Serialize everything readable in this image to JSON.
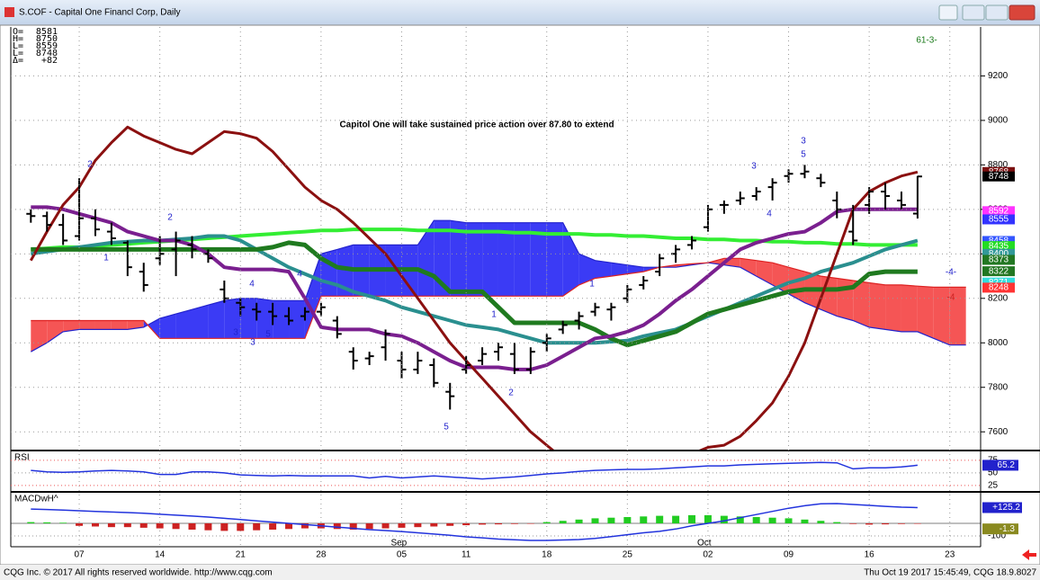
{
  "window": {
    "title": "S.COF - Capital One Financl Corp, Daily",
    "footer_left": "CQG Inc. © 2017 All rights reserved worldwide. http://www.cqg.com",
    "footer_right": "Thu Oct 19 2017 15:45:49, CQG 18.9.8027"
  },
  "header": [
    {
      "label": "O=",
      "value": "8581"
    },
    {
      "label": "H=",
      "value": "8750"
    },
    {
      "label": "L=",
      "value": "8559"
    },
    {
      "label": "L=",
      "value": "8748"
    },
    {
      "label": "Δ=",
      "value": "+82"
    }
  ],
  "chart_data": [
    {
      "type": "ohlc",
      "categories": [
        null,
        null,
        null,
        "07",
        null,
        null,
        null,
        null,
        "14",
        null,
        null,
        null,
        null,
        "21",
        null,
        null,
        null,
        null,
        "28",
        null,
        null,
        null,
        null,
        "05",
        null,
        null,
        null,
        "11",
        null,
        null,
        null,
        null,
        "18",
        null,
        null,
        null,
        null,
        "25",
        null,
        null,
        null,
        null,
        "02",
        null,
        null,
        null,
        null,
        "09",
        null,
        null,
        null,
        null,
        "16",
        null,
        null,
        null,
        null,
        "23",
        null
      ],
      "months": [
        "Sep",
        "Oct"
      ],
      "open": [
        8580,
        8570,
        8530,
        8480,
        8560,
        8500,
        8450,
        8320,
        8380,
        8420,
        8440,
        8400,
        8240,
        8180,
        8150,
        8140,
        8120,
        8120,
        8140,
        8100,
        7960,
        7930,
        7980,
        7920,
        7880,
        7900,
        7780,
        7880,
        7920,
        7960,
        7950,
        7880,
        8000,
        8060,
        8100,
        8140,
        8150,
        8200,
        8260,
        8320,
        8400,
        8440,
        8520,
        8620,
        8640,
        8660,
        8700,
        8750,
        8760,
        8740,
        8640,
        8500,
        8620,
        8680,
        8640,
        8581,
        null,
        null,
        null
      ],
      "high": [
        8600,
        8590,
        8580,
        8740,
        8600,
        8540,
        8460,
        8360,
        8480,
        8500,
        8480,
        8420,
        8280,
        8200,
        8180,
        8180,
        8160,
        8160,
        8180,
        8120,
        7980,
        7960,
        8060,
        7960,
        7960,
        7930,
        7820,
        7940,
        7980,
        8000,
        8000,
        7980,
        8040,
        8100,
        8140,
        8180,
        8180,
        8260,
        8300,
        8400,
        8440,
        8480,
        8620,
        8640,
        8680,
        8700,
        8740,
        8780,
        8800,
        8760,
        8680,
        8620,
        8700,
        8720,
        8680,
        8750,
        null,
        null,
        null
      ],
      "low": [
        8540,
        8500,
        8440,
        8460,
        8480,
        8440,
        8300,
        8230,
        8350,
        8300,
        8380,
        8360,
        8180,
        8120,
        8100,
        8080,
        8080,
        8100,
        8120,
        8020,
        7880,
        7900,
        7920,
        7840,
        7860,
        7800,
        7700,
        7860,
        7900,
        7920,
        7860,
        7860,
        7960,
        8040,
        8060,
        8120,
        8100,
        8180,
        8240,
        8300,
        8360,
        8420,
        8500,
        8580,
        8620,
        8640,
        8640,
        8720,
        8740,
        8700,
        8560,
        8440,
        8580,
        8600,
        8600,
        8559,
        null,
        null,
        null
      ],
      "close": [
        8570,
        8530,
        8460,
        8560,
        8510,
        8470,
        8340,
        8260,
        8400,
        8460,
        8420,
        8380,
        8200,
        8160,
        8140,
        8120,
        8100,
        8140,
        8160,
        8040,
        7920,
        7940,
        8040,
        7880,
        7920,
        7820,
        7760,
        7900,
        7950,
        7980,
        7880,
        7960,
        8020,
        8080,
        8120,
        8160,
        8160,
        8240,
        8280,
        8380,
        8420,
        8460,
        8600,
        8620,
        8650,
        8680,
        8720,
        8760,
        8770,
        8720,
        8600,
        8460,
        8680,
        8660,
        8620,
        8748,
        null,
        null,
        null
      ],
      "bar_color": "#000000",
      "ylim": [
        7520,
        9420
      ],
      "yticks": [
        7600,
        7800,
        8000,
        8200,
        8400,
        8600,
        8800,
        9000,
        9200
      ],
      "grid": true,
      "cloud": {
        "span_a": [
          7960,
          8000,
          8050,
          8060,
          8060,
          8060,
          8060,
          8070,
          8110,
          8130,
          8150,
          8170,
          8190,
          8200,
          8200,
          8190,
          8190,
          8190,
          8400,
          8420,
          8440,
          8440,
          8440,
          8440,
          8440,
          8550,
          8550,
          8540,
          8540,
          8540,
          8540,
          8540,
          8540,
          8540,
          8400,
          8370,
          8360,
          8350,
          8340,
          8340,
          8340,
          8350,
          8360,
          8350,
          8340,
          8300,
          8260,
          8220,
          8180,
          8150,
          8120,
          8100,
          8070,
          8060,
          8050,
          8050,
          8020,
          7990,
          7990
        ],
        "span_b": [
          8100,
          8100,
          8100,
          8100,
          8100,
          8100,
          8100,
          8100,
          8020,
          8020,
          8020,
          8020,
          8020,
          8020,
          8020,
          8020,
          8020,
          8020,
          8210,
          8210,
          8210,
          8210,
          8210,
          8210,
          8210,
          8210,
          8210,
          8210,
          8210,
          8210,
          8210,
          8210,
          8210,
          8210,
          8260,
          8290,
          8300,
          8310,
          8320,
          8340,
          8350,
          8355,
          8360,
          8380,
          8380,
          8370,
          8360,
          8340,
          8320,
          8300,
          8290,
          8280,
          8270,
          8260,
          8260,
          8255,
          8250,
          8250,
          8250
        ],
        "colors": [
          "#3b3bf5",
          "#f55555"
        ],
        "line_colors": [
          "#2222cc",
          "#dd2222"
        ]
      },
      "lines": [
        {
          "color": "#33ee33",
          "width": 4,
          "values": [
            8420,
            8425,
            8430,
            8430,
            8435,
            8440,
            8445,
            8450,
            8455,
            8460,
            8465,
            8470,
            8475,
            8480,
            8485,
            8490,
            8495,
            8500,
            8505,
            8505,
            8510,
            8510,
            8510,
            8510,
            8505,
            8505,
            8505,
            8500,
            8500,
            8500,
            8495,
            8495,
            8490,
            8490,
            8490,
            8485,
            8485,
            8480,
            8480,
            8475,
            8470,
            8470,
            8465,
            8465,
            8460,
            8460,
            8455,
            8455,
            8450,
            8450,
            8445,
            8445,
            8440,
            8440,
            8440,
            8440,
            null,
            null,
            null
          ]
        },
        {
          "color": "#2a8f8f",
          "width": 4,
          "values": [
            8400,
            8410,
            8420,
            8430,
            8440,
            8450,
            8455,
            8460,
            8460,
            8465,
            8470,
            8480,
            8480,
            8460,
            8420,
            8380,
            8340,
            8310,
            8280,
            8260,
            8230,
            8210,
            8190,
            8160,
            8140,
            8120,
            8100,
            8080,
            8070,
            8060,
            8040,
            8020,
            8000,
            8000,
            8000,
            8000,
            8005,
            8010,
            8030,
            8045,
            8060,
            8090,
            8120,
            8150,
            8180,
            8210,
            8240,
            8270,
            8290,
            8320,
            8340,
            8360,
            8390,
            8420,
            8440,
            8460,
            null,
            null,
            null
          ]
        },
        {
          "color": "#1f7a1f",
          "width": 5,
          "values": [
            8420,
            8420,
            8420,
            8420,
            8420,
            8420,
            8420,
            8420,
            8420,
            8420,
            8420,
            8420,
            8420,
            8420,
            8420,
            8430,
            8450,
            8440,
            8380,
            8340,
            8330,
            8330,
            8330,
            8330,
            8330,
            8300,
            8230,
            8230,
            8230,
            8160,
            8090,
            8090,
            8090,
            8090,
            8090,
            8060,
            8020,
            7990,
            8010,
            8030,
            8050,
            8090,
            8130,
            8150,
            8170,
            8190,
            8210,
            8230,
            8240,
            8240,
            8240,
            8250,
            8310,
            8320,
            8320,
            8320,
            null,
            null,
            null
          ]
        },
        {
          "color": "#7a1f8f",
          "width": 4,
          "values": [
            8610,
            8610,
            8600,
            8580,
            8560,
            8540,
            8500,
            8480,
            8460,
            8460,
            8440,
            8400,
            8340,
            8330,
            8330,
            8330,
            8320,
            8200,
            8070,
            8060,
            8060,
            8060,
            8040,
            8030,
            8000,
            7960,
            7920,
            7890,
            7890,
            7890,
            7880,
            7880,
            7900,
            7940,
            7980,
            8020,
            8030,
            8050,
            8080,
            8130,
            8190,
            8240,
            8300,
            8360,
            8420,
            8450,
            8470,
            8490,
            8500,
            8540,
            8590,
            8600,
            8600,
            8600,
            8600,
            8600,
            null,
            null,
            null
          ]
        },
        {
          "color": "#8b1010",
          "width": 3,
          "values": [
            8370,
            8500,
            8620,
            8700,
            8820,
            8900,
            8970,
            8930,
            8900,
            8870,
            8850,
            8900,
            8950,
            8940,
            8920,
            8860,
            8780,
            8700,
            8640,
            8600,
            8540,
            8470,
            8400,
            8300,
            8200,
            8100,
            8000,
            7920,
            7840,
            7760,
            7680,
            7600,
            7540,
            7480,
            7450,
            7440,
            7440,
            7440,
            7450,
            7460,
            7480,
            7500,
            7530,
            7540,
            7580,
            7650,
            7730,
            7850,
            8000,
            8200,
            8400,
            8600,
            8680,
            8720,
            8750,
            8768,
            null,
            null,
            null
          ]
        }
      ],
      "price_flags": [
        {
          "value": 8768,
          "color": "#7b1010"
        },
        {
          "value": 8748,
          "color": "#000000"
        },
        {
          "value": 8592,
          "color": "#ff33ff"
        },
        {
          "value": 8555,
          "color": "#3333ff"
        },
        {
          "value": 8458,
          "color": "#3355ff"
        },
        {
          "value": 8435,
          "color": "#22dd22"
        },
        {
          "value": 8400,
          "color": "#339999"
        },
        {
          "value": 8373,
          "color": "#227722"
        },
        {
          "value": 8322,
          "color": "#227722"
        },
        {
          "value": 8271,
          "color": "#33dddd"
        },
        {
          "value": 8248,
          "color": "#ff3333"
        }
      ],
      "annotations": [
        {
          "text": "Capitol One will take sustained price action over 87.80 to extend",
          "color": "#000000"
        },
        {
          "text": "61-3-",
          "color": "#1a7a1a"
        },
        {
          "text": "-4-",
          "color": "#2222cc"
        },
        {
          "text": "-4",
          "color": "#cc2222"
        },
        {
          "text": "2",
          "color": "#2222cc"
        },
        {
          "text": "1",
          "color": "#2222cc"
        },
        {
          "text": "2",
          "color": "#2222cc"
        },
        {
          "text": "4",
          "color": "#2222cc"
        },
        {
          "text": "3",
          "color": "#2222cc"
        },
        {
          "text": "5",
          "color": "#2222cc"
        },
        {
          "text": "3",
          "color": "#2222cc"
        },
        {
          "text": "4",
          "color": "#2222cc"
        },
        {
          "text": "1",
          "color": "#2222cc"
        },
        {
          "text": "2",
          "color": "#2222cc"
        },
        {
          "text": "5",
          "color": "#2222cc"
        },
        {
          "text": "1",
          "color": "#2222cc"
        },
        {
          "text": "3",
          "color": "#2222cc"
        },
        {
          "text": "4",
          "color": "#2222cc"
        },
        {
          "text": "3",
          "color": "#2222cc"
        },
        {
          "text": "5",
          "color": "#2222cc"
        }
      ]
    },
    {
      "type": "line",
      "title": "RSI",
      "color": "#2233dd",
      "values": [
        55,
        52,
        51,
        52,
        54,
        55,
        54,
        52,
        47,
        47,
        52,
        52,
        50,
        46,
        45,
        44,
        45,
        44,
        44,
        44,
        44,
        40,
        43,
        40,
        42,
        44,
        42,
        40,
        38,
        40,
        42,
        45,
        48,
        50,
        53,
        55,
        56,
        57,
        57,
        58,
        60,
        62,
        64,
        64,
        66,
        67,
        68,
        69,
        70,
        71,
        70,
        58,
        60,
        60,
        62,
        65.2
      ],
      "ylim": [
        14,
        91
      ],
      "yticks": [
        75,
        50,
        25
      ]
    },
    {
      "type": "macd",
      "title": "MACDwH^",
      "series": [
        {
          "color": "#2233dd",
          "values": [
            114,
            110,
            105,
            100,
            95,
            90,
            86,
            80,
            72,
            65,
            58,
            50,
            40,
            30,
            20,
            10,
            0,
            -10,
            -20,
            -30,
            -40,
            -50,
            -57,
            -65,
            -75,
            -85,
            -95,
            -107,
            -115,
            -125,
            -130,
            -136,
            -136,
            -132,
            -129,
            -120,
            -105,
            -90,
            -75,
            -64,
            -45,
            -20,
            0,
            20,
            45,
            70,
            95,
            120,
            140,
            155,
            157,
            150,
            143,
            135,
            129,
            125.2
          ],
          "value_labels": [
            null,
            null,
            null,
            null,
            null,
            null,
            null,
            null,
            null,
            null,
            null,
            null,
            null,
            null,
            null,
            null,
            null,
            null,
            null,
            null,
            null,
            null,
            null,
            null,
            null,
            null,
            null,
            null,
            null,
            null,
            null,
            null,
            null,
            null,
            null,
            null,
            null,
            null,
            null,
            null,
            null,
            null,
            null,
            null,
            null,
            null,
            null,
            null,
            null,
            null,
            null,
            null,
            null,
            null,
            null,
            "+125.2"
          ]
        }
      ],
      "histogram": {
        "colors": [
          "#22cc22",
          "#cc2222"
        ],
        "values": [
          10,
          8,
          5,
          -20,
          -25,
          -30,
          -30,
          -35,
          -40,
          -45,
          -50,
          -55,
          -60,
          -60,
          -55,
          -50,
          -45,
          -40,
          -40,
          -45,
          -50,
          -45,
          -40,
          -35,
          -30,
          -25,
          -20,
          -15,
          -10,
          -8,
          -5,
          -3,
          10,
          20,
          30,
          40,
          45,
          50,
          55,
          60,
          60,
          65,
          65,
          60,
          55,
          50,
          45,
          40,
          30,
          20,
          10,
          -5,
          -10,
          -8,
          -5,
          -1.3
        ]
      },
      "ylim": [
        -186,
        236
      ],
      "yticks": [
        -100
      ]
    }
  ]
}
